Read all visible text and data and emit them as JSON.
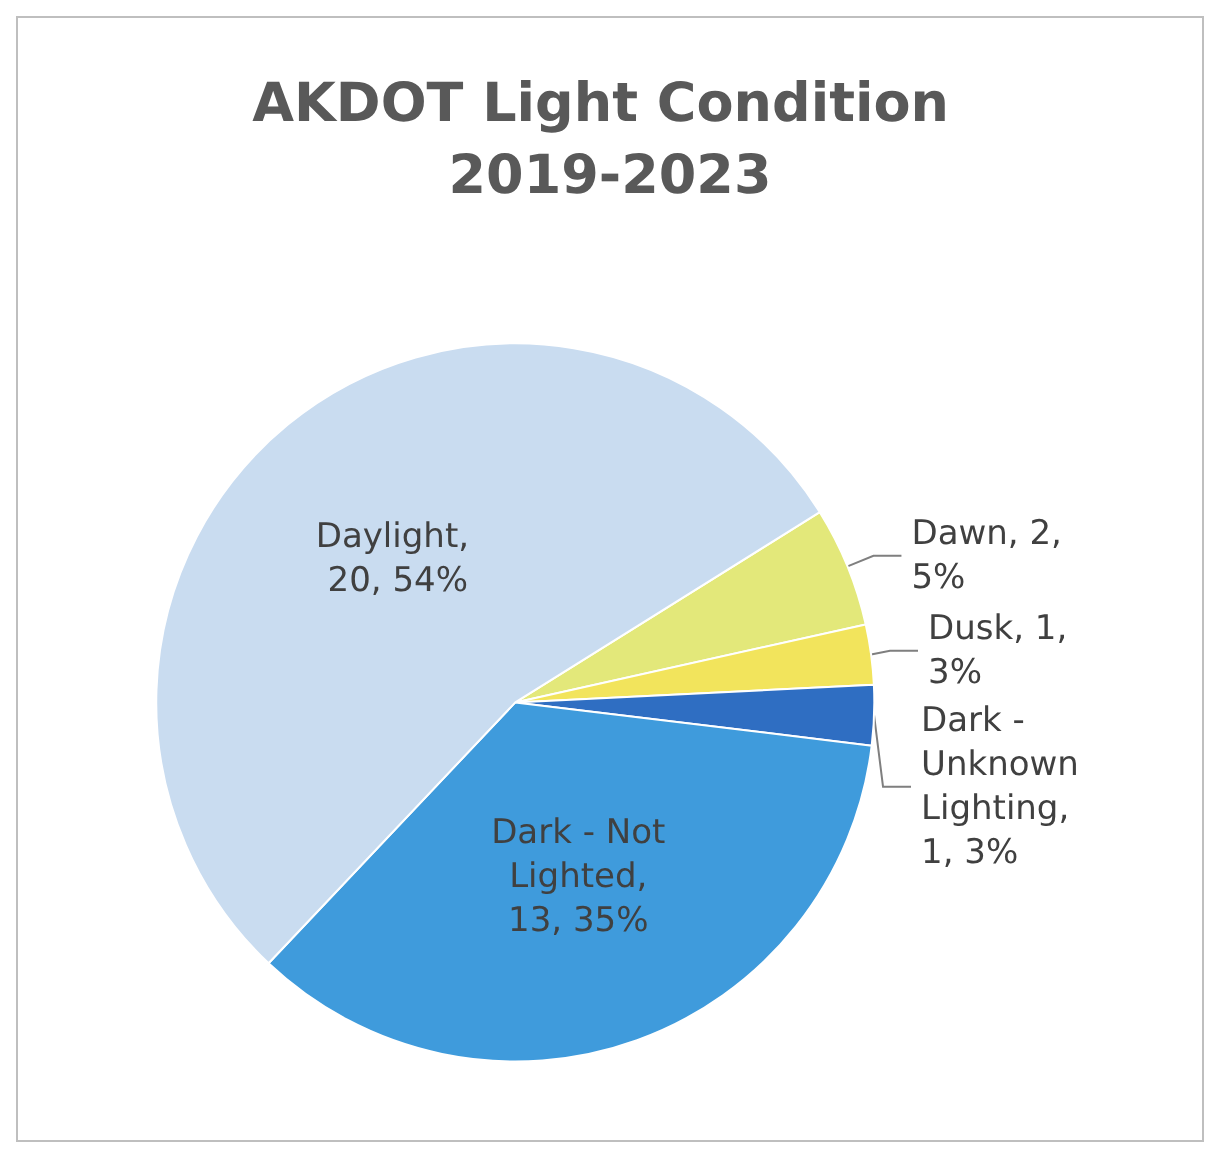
{
  "chart_data": {
    "type": "pie",
    "title": "AKDOT Light Condition 2019-2023",
    "categories": [
      "Dawn",
      "Dusk",
      "Dark - Unknown Lighting",
      "Dark - Not Lighted",
      "Daylight"
    ],
    "values": [
      2,
      1,
      1,
      13,
      20
    ],
    "value_labels": [
      ", 2, 5%",
      ", 1, 3%",
      ", 1, 3%",
      ", 13, 35%",
      ", 20, 54%"
    ],
    "colors": [
      "#e3e87a",
      "#f2e45c",
      "#2f6ec2",
      "#3f9bdc",
      "#c9dcf0"
    ],
    "legend": false
  }
}
